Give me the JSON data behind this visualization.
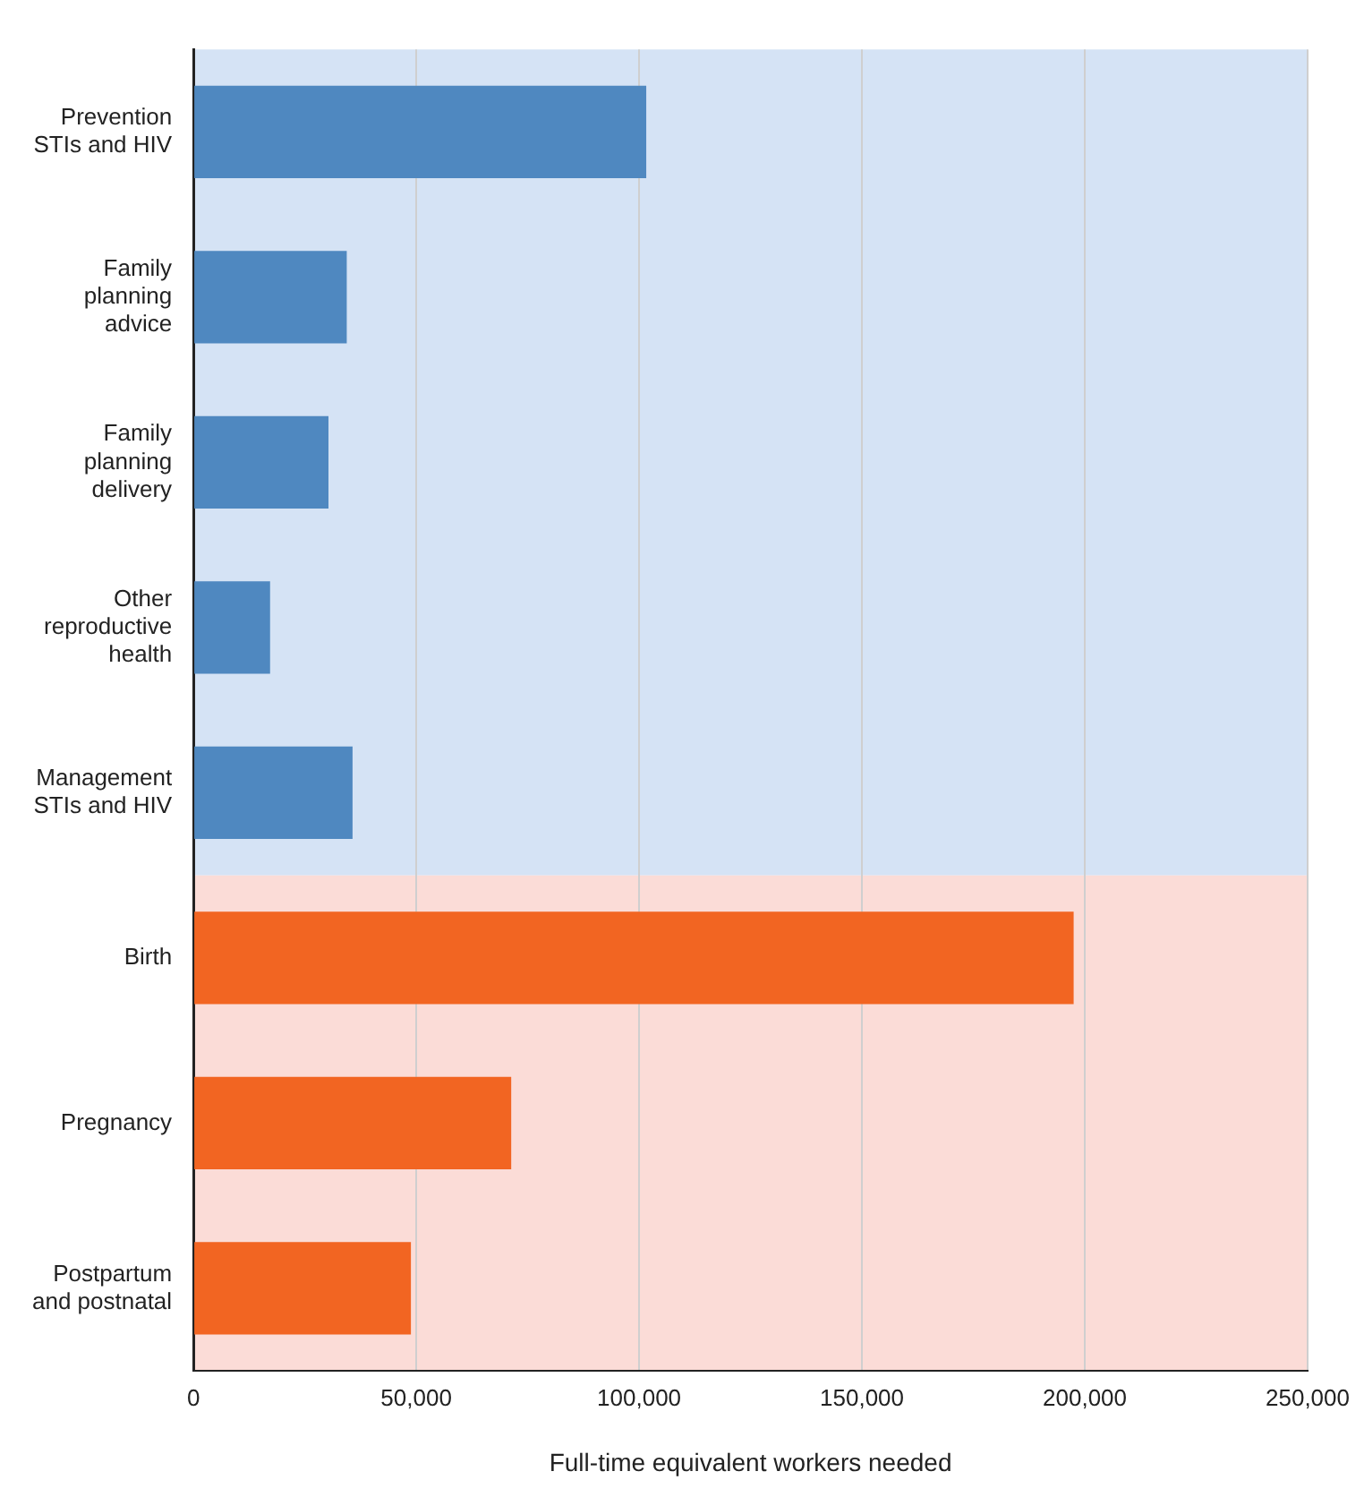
{
  "chart_data": {
    "type": "bar",
    "orientation": "horizontal",
    "xlabel": "Full-time equivalent workers needed",
    "categories": [
      "Prevention\nSTIs and HIV",
      "Family\nplanning\nadvice",
      "Family\nplanning\ndelivery",
      "Other\nreproductive\nhealth",
      "Management\nSTIs and HIV",
      "Birth",
      "Pregnancy",
      "Postpartum\nand postnatal"
    ],
    "values": [
      101600,
      34400,
      30300,
      17200,
      35700,
      197500,
      71300,
      48800
    ],
    "colors": [
      "#4f88c0",
      "#4f88c0",
      "#4f88c0",
      "#4f88c0",
      "#4f88c0",
      "#f26522",
      "#f26522",
      "#f26522"
    ],
    "xlim": [
      0,
      250000
    ],
    "xticks": [
      {
        "value": 0,
        "label": "0"
      },
      {
        "value": 50000,
        "label": "50,000"
      },
      {
        "value": 100000,
        "label": "100,000"
      },
      {
        "value": 150000,
        "label": "150,000"
      },
      {
        "value": 200000,
        "label": "200,000"
      },
      {
        "value": 250000,
        "label": "250,000"
      }
    ],
    "bands": [
      {
        "axis": "y",
        "from": "Prevention\nSTIs and HIV",
        "to": "Management\nSTIs and HIV",
        "color": "#d5e3f5"
      },
      {
        "axis": "y",
        "from": "Birth",
        "to": "Postpartum\nand postnatal",
        "color": "#fbdcd7"
      }
    ],
    "grid": "x",
    "legend": false
  }
}
